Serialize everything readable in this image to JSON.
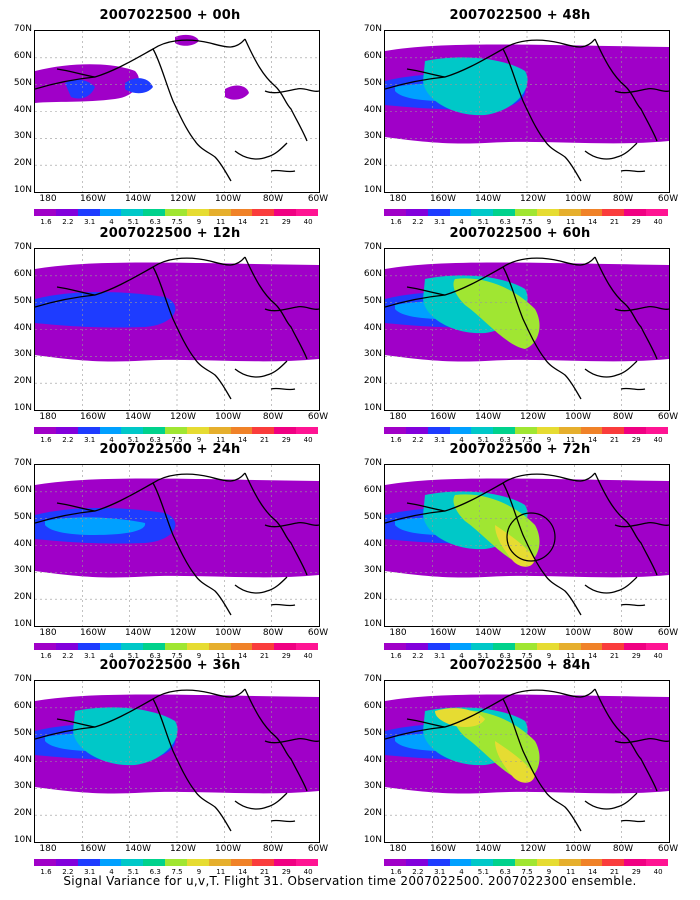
{
  "panels": [
    {
      "title": "2007022500 + 00h",
      "level": 0,
      "circle": false
    },
    {
      "title": "2007022500 + 48h",
      "level": 2,
      "circle": false
    },
    {
      "title": "2007022500 + 12h",
      "level": 1,
      "circle": false
    },
    {
      "title": "2007022500 + 60h",
      "level": 3,
      "circle": false
    },
    {
      "title": "2007022500 + 24h",
      "level": 1.5,
      "circle": false
    },
    {
      "title": "2007022500 + 72h",
      "level": 3.5,
      "circle": true
    },
    {
      "title": "2007022500 + 36h",
      "level": 2,
      "circle": false
    },
    {
      "title": "2007022500 + 84h",
      "level": 4,
      "circle": false
    }
  ],
  "y_axis_labels": [
    "70N",
    "60N",
    "50N",
    "40N",
    "30N",
    "20N",
    "10N"
  ],
  "x_axis_labels": [
    "180",
    "160W",
    "140W",
    "120W",
    "100W",
    "80W",
    "60W"
  ],
  "colorbar": {
    "labels": [
      "1.6",
      "2.2",
      "3.1",
      "4",
      "5.1",
      "6.3",
      "7.5",
      "9",
      "11",
      "14",
      "21",
      "29",
      "40"
    ],
    "colors": [
      "#a000c8",
      "#8200dc",
      "#1e3cff",
      "#00a0ff",
      "#00c8c8",
      "#00d28c",
      "#a0e632",
      "#e6dc32",
      "#e6af2d",
      "#f08228",
      "#fa3c3c",
      "#f00082",
      "#ff1493"
    ]
  },
  "footer": "Signal Variance for u,v,T. Flight 31. Observation time 2007022500. 2007022300 ensemble."
}
